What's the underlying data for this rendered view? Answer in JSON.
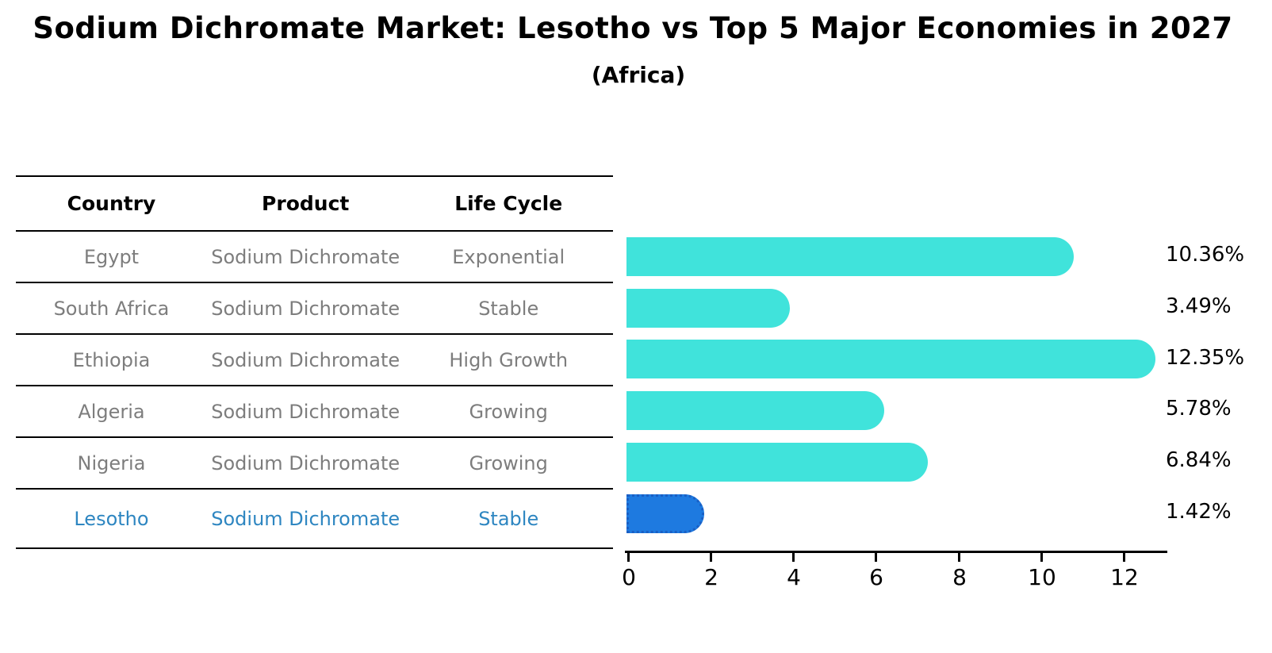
{
  "title": "Sodium Dichromate Market: Lesotho vs Top 5 Major Economies in 2027",
  "subtitle": "(Africa)",
  "table": {
    "headers": {
      "country": "Country",
      "product": "Product",
      "life_cycle": "Life Cycle"
    },
    "rows": [
      {
        "country": "Egypt",
        "product": "Sodium Dichromate",
        "life_cycle": "Exponential"
      },
      {
        "country": "South Africa",
        "product": "Sodium Dichromate",
        "life_cycle": "Stable"
      },
      {
        "country": "Ethiopia",
        "product": "Sodium Dichromate",
        "life_cycle": "High Growth"
      },
      {
        "country": "Algeria",
        "product": "Sodium Dichromate",
        "life_cycle": "Growing"
      },
      {
        "country": "Nigeria",
        "product": "Sodium Dichromate",
        "life_cycle": "Growing"
      },
      {
        "country": "Lesotho",
        "product": "Sodium Dichromate",
        "life_cycle": "Stable"
      }
    ],
    "highlight_row": "Lesotho"
  },
  "chart_data": {
    "type": "bar",
    "orientation": "horizontal",
    "categories": [
      "Egypt",
      "South Africa",
      "Ethiopia",
      "Algeria",
      "Nigeria",
      "Lesotho"
    ],
    "values": [
      10.36,
      3.49,
      12.35,
      5.78,
      6.84,
      1.42
    ],
    "value_labels": [
      "10.36%",
      "3.49%",
      "12.35%",
      "5.78%",
      "6.84%",
      "1.42%"
    ],
    "x_ticks": [
      "0",
      "2",
      "4",
      "6",
      "8",
      "10",
      "12"
    ],
    "xlim": [
      0,
      13.1
    ],
    "grid": false,
    "legend": false,
    "bar_color": "#40e3db",
    "highlight_bar_color": "#1e7ae0",
    "highlight_bar_border": "#1a5fc4",
    "highlight_index": 5
  },
  "colors": {
    "background": "#ffffff",
    "table_text": "#7d7d7d",
    "table_highlight_text": "#2e86c1",
    "axis": "#000000"
  }
}
